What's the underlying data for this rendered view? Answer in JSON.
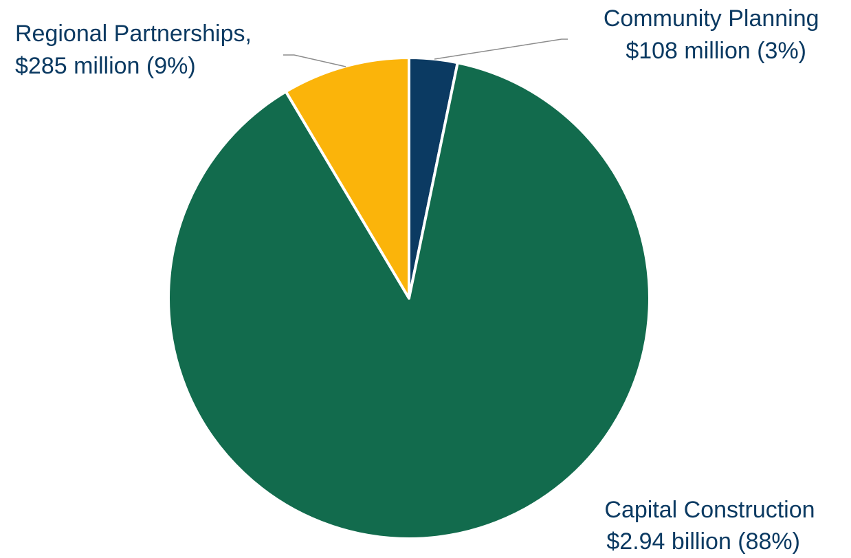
{
  "colors": {
    "community_planning": "#0b3a62",
    "capital_construction": "#126b4d",
    "regional_partnerships": "#fbb40a",
    "label_text": "#0b3a62"
  },
  "chart_data": {
    "type": "pie",
    "start_angle_deg": 0,
    "direction": "clockwise",
    "legend": "none",
    "slices": [
      {
        "key": "community_planning",
        "value": 108,
        "percent": 3,
        "label_line1": "Community Planning",
        "label_line2": "$108 million (3%)"
      },
      {
        "key": "capital_construction",
        "value": 2940,
        "percent": 88,
        "label_line1": "Capital Construction",
        "label_line2": "$2.94 billion (88%)"
      },
      {
        "key": "regional_partnerships",
        "value": 285,
        "percent": 9,
        "label_line1": "Regional Partnerships,",
        "label_line2": "$285 million (9%)"
      }
    ]
  }
}
